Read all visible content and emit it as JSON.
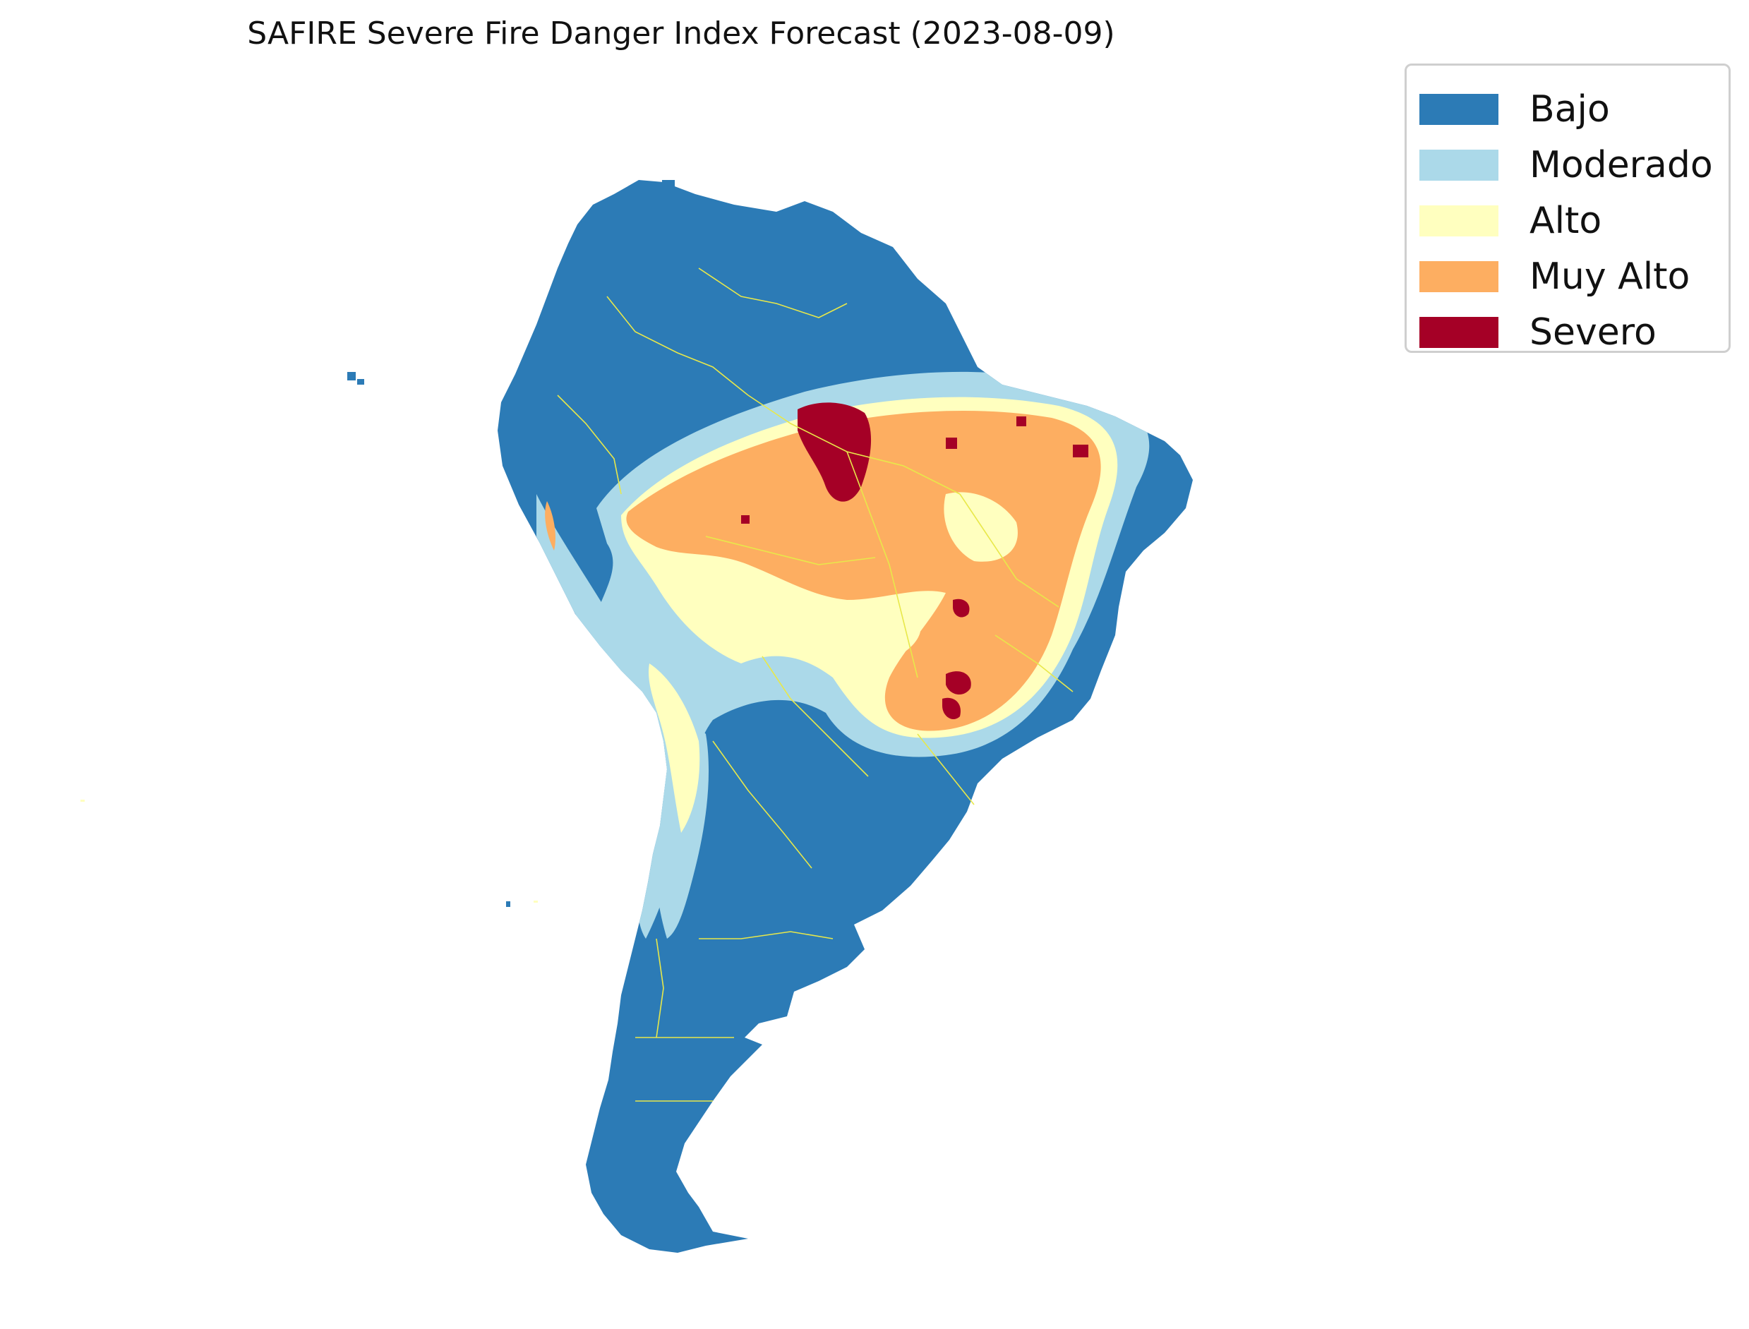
{
  "title": "SAFIRE Severe Fire Danger Index Forecast (2023-08-09)",
  "legend": {
    "items": [
      {
        "label": "Bajo",
        "color": "#2c7bb6"
      },
      {
        "label": "Moderado",
        "color": "#abd9e9"
      },
      {
        "label": "Alto",
        "color": "#ffffbf"
      },
      {
        "label": "Muy Alto",
        "color": "#fdae61"
      },
      {
        "label": "Severo",
        "color": "#a50026"
      }
    ]
  },
  "map": {
    "region": "South America",
    "boundary_color": "#e8e84a"
  }
}
